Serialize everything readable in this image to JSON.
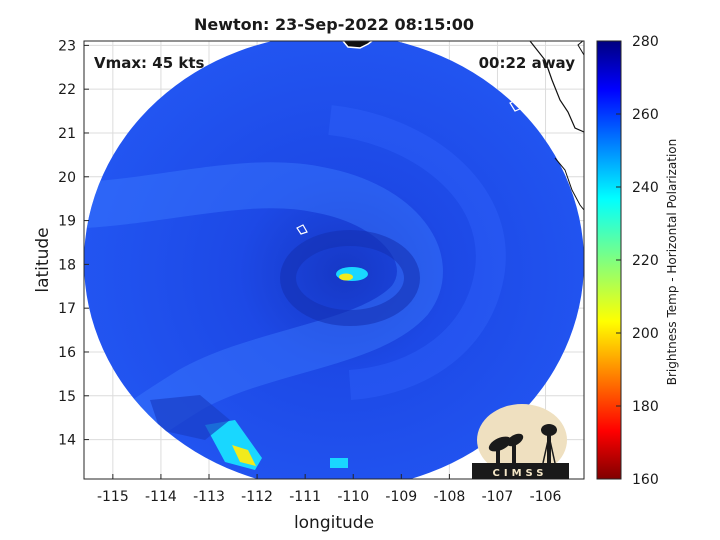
{
  "figure": {
    "title": "Newton: 23-Sep-2022 08:15:00",
    "vmax_label": "Vmax: 45 kts",
    "time_offset_label": "00:22 away",
    "xlabel": "longitude",
    "ylabel": "latitude",
    "logo_text": "CIMSS"
  },
  "chart_data": {
    "type": "heatmap",
    "title": "Newton: 23-Sep-2022 08:15:00",
    "xlabel": "longitude",
    "ylabel": "latitude",
    "xlim": [
      -115.6,
      -105.2
    ],
    "ylim": [
      13.1,
      23.1
    ],
    "x_ticks": [
      -115,
      -114,
      -113,
      -112,
      -111,
      -110,
      -109,
      -108,
      -107,
      -106
    ],
    "y_ticks": [
      14,
      15,
      16,
      17,
      18,
      19,
      20,
      21,
      22,
      23
    ],
    "grid": true,
    "storm_center": {
      "lon": -110.0,
      "lat": 17.8
    },
    "colorbar": {
      "label": "Brightness Temp - Horizontal Polarization",
      "min": 160,
      "max": 280,
      "ticks": [
        160,
        180,
        200,
        220,
        240,
        260,
        280
      ],
      "colormap": "jet"
    }
  },
  "colors": {
    "background_field": "#1f52f0",
    "band_light": "#3a78ff",
    "eye_wall_dark": "#1a3fc8",
    "warm_cyan": "#19d7ff",
    "yellow": "#f2ea1c"
  }
}
